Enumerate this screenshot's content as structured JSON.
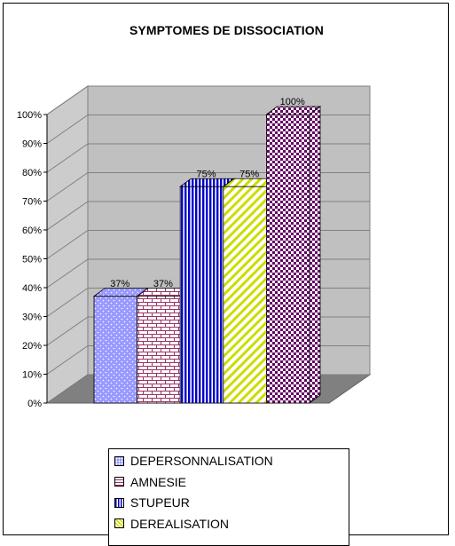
{
  "chart_data": {
    "type": "bar",
    "title": "SYMPTOMES DE DISSOCIATION",
    "categories": [
      "DEPERSONNALISATION",
      "AMNESIE",
      "STUPEUR",
      "DEREALISATION",
      ""
    ],
    "values": [
      37,
      37,
      75,
      75,
      100
    ],
    "data_labels": [
      "37%",
      "37%",
      "75%",
      "75%",
      "100%"
    ],
    "ylim": [
      0,
      100
    ],
    "yticks": [
      "0%",
      "10%",
      "20%",
      "30%",
      "40%",
      "50%",
      "60%",
      "70%",
      "80%",
      "90%",
      "100%"
    ],
    "grid": true,
    "style": "3d",
    "legend": {
      "placement": "bottom",
      "entries": [
        "DEPERSONNALISATION",
        "AMNESIE",
        "STUPEUR",
        "DEREALISATION"
      ]
    },
    "colors": [
      "#9999ff",
      "#993366",
      "#0000cc",
      "#ccdd00",
      "#660066"
    ]
  }
}
